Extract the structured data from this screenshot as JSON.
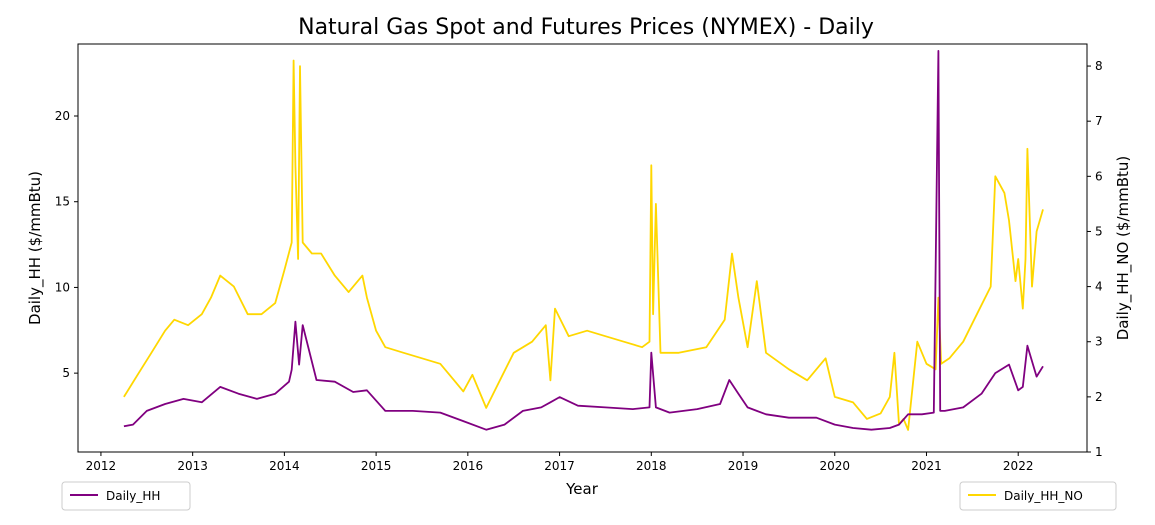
{
  "chart_data": {
    "type": "line",
    "title": "Natural Gas Spot and Futures Prices (NYMEX) - Daily",
    "xlabel": "Year",
    "ylabel_left": "Daily_HH ($/mmBtu)",
    "ylabel_right": "Daily_HH_NO ($/mmBtu)",
    "xlim": [
      2011.75,
      2022.75
    ],
    "ylim_left": [
      0.4,
      24.2
    ],
    "ylim_right": [
      1.0,
      8.4
    ],
    "x_ticks": [
      2012,
      2013,
      2014,
      2015,
      2016,
      2017,
      2018,
      2019,
      2020,
      2021,
      2022
    ],
    "x_tick_labels": [
      "2012",
      "2013",
      "2014",
      "2015",
      "2016",
      "2017",
      "2018",
      "2019",
      "2020",
      "2021",
      "2022"
    ],
    "y_left_ticks": [
      5,
      10,
      15,
      20
    ],
    "y_left_tick_labels": [
      "5",
      "10",
      "15",
      "20"
    ],
    "y_right_ticks": [
      1,
      2,
      3,
      4,
      5,
      6,
      7,
      8
    ],
    "y_right_tick_labels": [
      "1",
      "2",
      "3",
      "4",
      "5",
      "6",
      "7",
      "8"
    ],
    "grid": false,
    "legend": [
      {
        "name": "Daily_HH",
        "color": "#800080",
        "placement": "bottom-left"
      },
      {
        "name": "Daily_HH_NO",
        "color": "#ffd700",
        "placement": "bottom-right"
      }
    ],
    "series": [
      {
        "name": "Daily_HH",
        "axis": "left",
        "color": "#800080",
        "x": [
          2012.25,
          2012.35,
          2012.5,
          2012.7,
          2012.9,
          2013.1,
          2013.3,
          2013.5,
          2013.7,
          2013.9,
          2014.05,
          2014.08,
          2014.12,
          2014.16,
          2014.2,
          2014.35,
          2014.55,
          2014.75,
          2014.9,
          2015.1,
          2015.4,
          2015.7,
          2015.95,
          2016.2,
          2016.4,
          2016.6,
          2016.8,
          2016.9,
          2017.0,
          2017.2,
          2017.5,
          2017.8,
          2017.98,
          2018.0,
          2018.05,
          2018.2,
          2018.5,
          2018.75,
          2018.85,
          2018.95,
          2019.05,
          2019.15,
          2019.25,
          2019.5,
          2019.8,
          2020.0,
          2020.2,
          2020.4,
          2020.6,
          2020.7,
          2020.8,
          2020.95,
          2021.08,
          2021.13,
          2021.15,
          2021.2,
          2021.4,
          2021.6,
          2021.75,
          2021.9,
          2022.0,
          2022.05,
          2022.1,
          2022.2,
          2022.27
        ],
        "y": [
          1.9,
          2.0,
          2.8,
          3.2,
          3.5,
          3.3,
          4.2,
          3.8,
          3.5,
          3.8,
          4.5,
          5.2,
          8.0,
          5.5,
          7.8,
          4.6,
          4.5,
          3.9,
          4.0,
          2.8,
          2.8,
          2.7,
          2.2,
          1.7,
          2.0,
          2.8,
          3.0,
          3.3,
          3.6,
          3.1,
          3.0,
          2.9,
          3.0,
          6.2,
          3.0,
          2.7,
          2.9,
          3.2,
          4.6,
          3.8,
          3.0,
          2.8,
          2.6,
          2.4,
          2.4,
          2.0,
          1.8,
          1.7,
          1.8,
          2.0,
          2.6,
          2.6,
          2.7,
          23.8,
          2.8,
          2.8,
          3.0,
          3.8,
          5.0,
          5.5,
          4.0,
          4.2,
          6.6,
          4.8,
          5.4
        ]
      },
      {
        "name": "Daily_HH_NO",
        "axis": "right",
        "color": "#ffd700",
        "x": [
          2012.25,
          2012.4,
          2012.55,
          2012.7,
          2012.8,
          2012.95,
          2013.1,
          2013.2,
          2013.3,
          2013.45,
          2013.6,
          2013.75,
          2013.9,
          2014.0,
          2014.08,
          2014.1,
          2014.12,
          2014.15,
          2014.17,
          2014.2,
          2014.3,
          2014.4,
          2014.55,
          2014.7,
          2014.85,
          2014.9,
          2015.0,
          2015.1,
          2015.3,
          2015.5,
          2015.7,
          2015.85,
          2015.95,
          2016.05,
          2016.2,
          2016.35,
          2016.5,
          2016.7,
          2016.85,
          2016.9,
          2016.95,
          2017.1,
          2017.3,
          2017.5,
          2017.7,
          2017.9,
          2017.98,
          2018.0,
          2018.02,
          2018.05,
          2018.1,
          2018.3,
          2018.6,
          2018.8,
          2018.88,
          2018.95,
          2019.05,
          2019.15,
          2019.25,
          2019.5,
          2019.7,
          2019.9,
          2020.0,
          2020.2,
          2020.35,
          2020.5,
          2020.6,
          2020.65,
          2020.7,
          2020.75,
          2020.8,
          2020.9,
          2021.0,
          2021.1,
          2021.13,
          2021.16,
          2021.25,
          2021.4,
          2021.55,
          2021.7,
          2021.75,
          2021.85,
          2021.9,
          2021.97,
          2022.0,
          2022.05,
          2022.08,
          2022.1,
          2022.15,
          2022.2,
          2022.27
        ],
        "y": [
          2.0,
          2.4,
          2.8,
          3.2,
          3.4,
          3.3,
          3.5,
          3.8,
          4.2,
          4.0,
          3.5,
          3.5,
          3.7,
          4.3,
          4.8,
          8.1,
          6.2,
          4.5,
          8.0,
          4.8,
          4.6,
          4.6,
          4.2,
          3.9,
          4.2,
          3.8,
          3.2,
          2.9,
          2.8,
          2.7,
          2.6,
          2.3,
          2.1,
          2.4,
          1.8,
          2.3,
          2.8,
          3.0,
          3.3,
          2.3,
          3.6,
          3.1,
          3.2,
          3.1,
          3.0,
          2.9,
          3.0,
          6.2,
          3.5,
          5.5,
          2.8,
          2.8,
          2.9,
          3.4,
          4.6,
          3.8,
          2.9,
          4.1,
          2.8,
          2.5,
          2.3,
          2.7,
          2.0,
          1.9,
          1.6,
          1.7,
          2.0,
          2.8,
          1.5,
          1.6,
          1.4,
          3.0,
          2.6,
          2.5,
          3.8,
          2.6,
          2.7,
          3.0,
          3.5,
          4.0,
          6.0,
          5.7,
          5.2,
          4.1,
          4.5,
          3.6,
          4.5,
          6.5,
          4.0,
          5.0,
          5.4
        ]
      }
    ]
  }
}
